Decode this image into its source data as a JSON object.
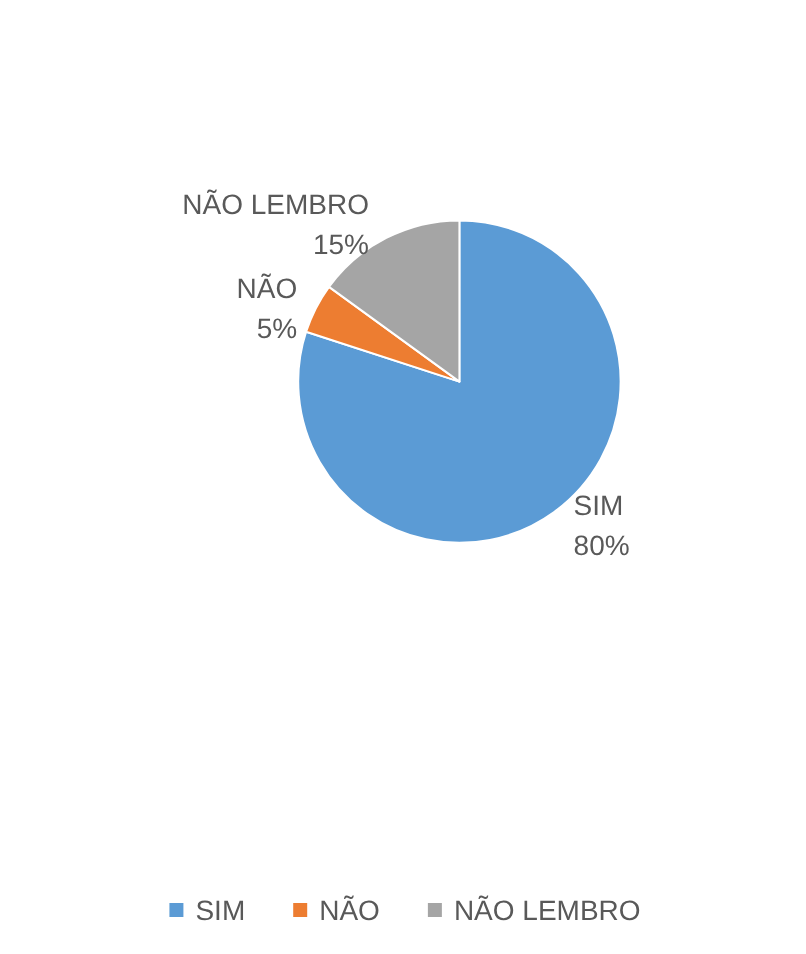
{
  "chart_data": {
    "type": "pie",
    "categories": [
      "SIM",
      "NÃO",
      "NÃO LEMBRO"
    ],
    "values": [
      80,
      5,
      15
    ],
    "colors": [
      "#5b9bd5",
      "#ed7d31",
      "#a5a5a5"
    ],
    "value_labels": [
      "80%",
      "5%",
      "15%"
    ],
    "legend": "bottom"
  }
}
